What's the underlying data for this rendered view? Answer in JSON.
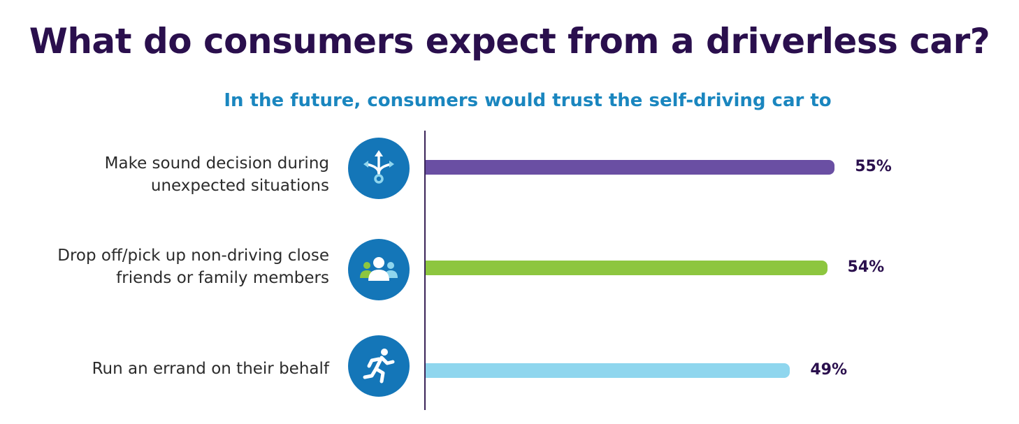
{
  "title": "What do consumers expect from a driverless car?",
  "chart_data": {
    "type": "bar",
    "orientation": "horizontal",
    "title": "In the future, consumers would trust the self-driving car to",
    "unit": "%",
    "categories": [
      "Make sound decision during\nunexpected situations",
      "Drop off/pick up non-driving close\nfriends or family members",
      "Run an errand on their behalf"
    ],
    "values": [
      55,
      54,
      49
    ],
    "value_labels": [
      "55%",
      "54%",
      "49%"
    ],
    "bar_colors": [
      "#6a4fa3",
      "#8dc63f",
      "#8fd6ee"
    ],
    "icons": [
      "decision-arrows-icon",
      "people-group-icon",
      "running-person-icon"
    ],
    "icon_background": "#1476b8",
    "grid": false,
    "legend": "none"
  }
}
